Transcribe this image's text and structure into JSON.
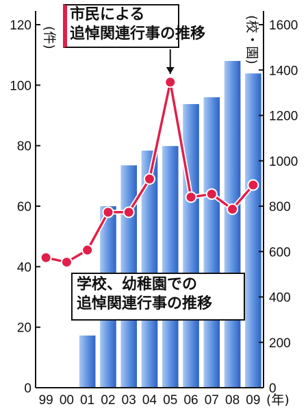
{
  "chart_data": {
    "type": "bar+line",
    "categories": [
      "99",
      "00",
      "01",
      "02",
      "03",
      "04",
      "05",
      "06",
      "07",
      "08",
      "09"
    ],
    "x_unit": "(年)",
    "series": [
      {
        "name": "学校、幼稚園での追悼関連行事の推移",
        "type": "bar",
        "axis": "right",
        "values": [
          null,
          null,
          230,
          800,
          980,
          1045,
          1065,
          1250,
          1280,
          1440,
          1385
        ]
      },
      {
        "name": "市民による追悼関連行事の推移",
        "type": "line",
        "axis": "left",
        "values": [
          43,
          41.5,
          45.5,
          58,
          58,
          69,
          101,
          63,
          64,
          59,
          67
        ]
      }
    ],
    "left_axis": {
      "unit": "(件)",
      "ylim": [
        0,
        120
      ],
      "ticks": [
        "0",
        "20",
        "40",
        "60",
        "80",
        "100",
        "120"
      ]
    },
    "right_axis": {
      "unit": "(校・園)",
      "ylim": [
        0,
        1600
      ],
      "ticks": [
        "0",
        "200",
        "400",
        "600",
        "800",
        "1000",
        "1200",
        "1400",
        "1600"
      ]
    },
    "colors": {
      "bar": "#4a7fd6",
      "bar_light": "#a9c8f2",
      "line": "#e0204a",
      "marker": "#e0204a"
    }
  },
  "callout_line": {
    "lines": [
      "市民による",
      "追悼関連行事の推移"
    ]
  },
  "callout_bar": {
    "lines": [
      "学校、幼稚園での",
      "追悼関連行事の推移"
    ]
  }
}
